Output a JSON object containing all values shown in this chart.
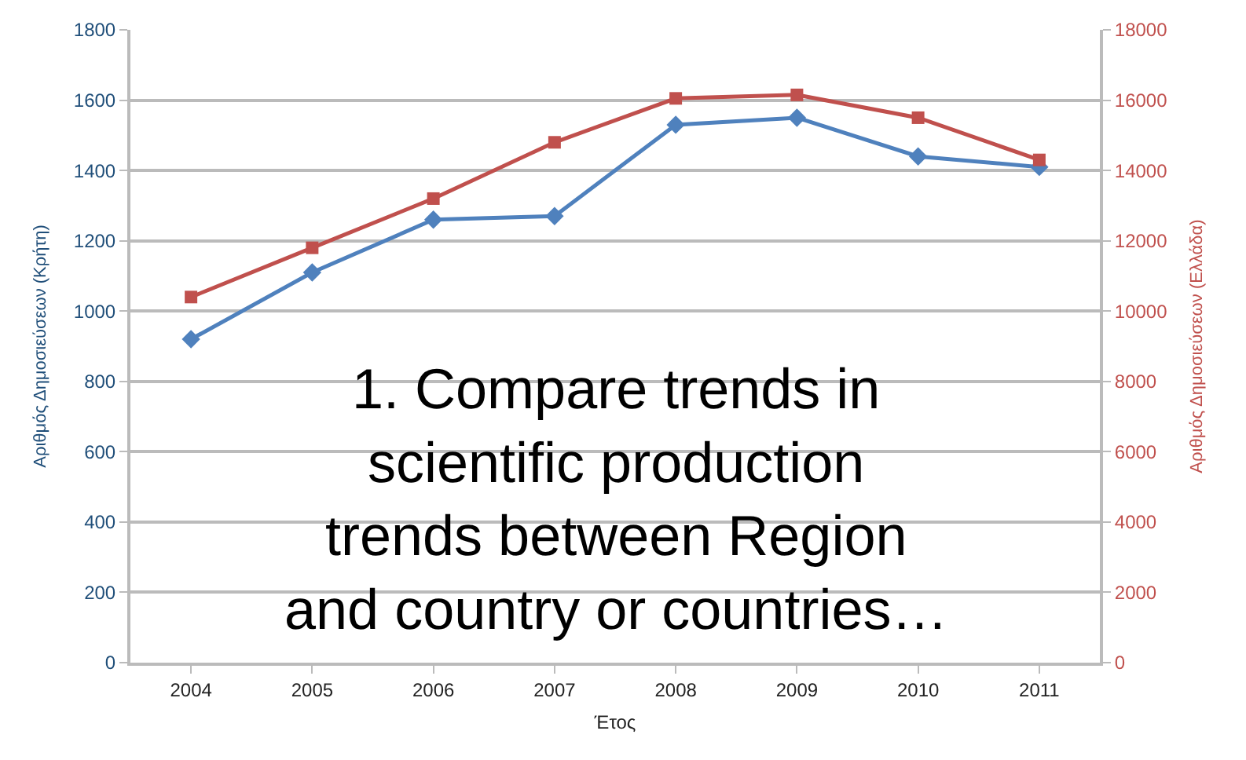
{
  "chart_data": {
    "type": "line",
    "categories": [
      "2004",
      "2005",
      "2006",
      "2007",
      "2008",
      "2009",
      "2010",
      "2011"
    ],
    "series": [
      {
        "color": "#4f81bd",
        "marker": "diamond",
        "values": [
          920,
          1110,
          1260,
          1270,
          1530,
          1550,
          1440,
          1410
        ]
      },
      {
        "color": "#c0504d",
        "marker": "square",
        "axis": "y2",
        "values": [
          10400,
          11800,
          13200,
          14800,
          16050,
          16150,
          15500,
          14300
        ]
      }
    ],
    "xlabel": "Έτος",
    "ylabel": "Αριθμός Δημοσιεύσεων (Κρήτη)",
    "y2label": "Αριθμός Δημοσιεύσεων (Ελλάδα)",
    "ylim": [
      0,
      1800
    ],
    "yticks": [
      0,
      200,
      400,
      600,
      800,
      1000,
      1200,
      1400,
      1600,
      1800
    ],
    "y2lim": [
      0,
      18000
    ],
    "y2ticks": [
      0,
      2000,
      4000,
      6000,
      8000,
      10000,
      12000,
      14000,
      16000,
      18000
    ],
    "grid": "y",
    "annotations": [
      "1. Compare trends in\nscientific production\ntrends between Region\nand country or countries…"
    ]
  }
}
